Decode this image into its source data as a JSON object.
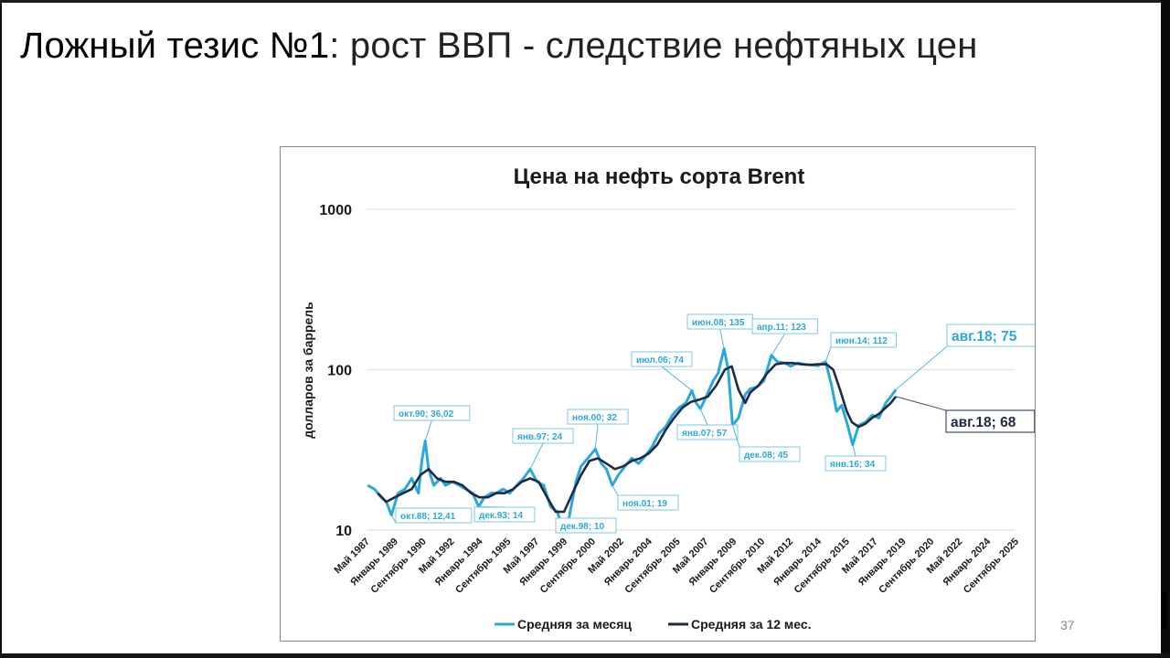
{
  "slide": {
    "title_strong": "Ложный тезис №1",
    "title_rest": ": рост ВВП - следствие нефтяных цен",
    "page_number": "37"
  },
  "colors": {
    "monthly": "#2aa8dc",
    "annual": "#1f2a44",
    "label_monthly": "#2aa8dc",
    "label_annual": "#1f2a44",
    "grid": "#e6e6e6"
  },
  "chart_data": {
    "type": "line",
    "title": "Цена на нефть сорта Brent",
    "xlabel": "",
    "ylabel": "долларов за баррель",
    "yscale": "log",
    "ylim": [
      10,
      1000
    ],
    "yticks": [
      "1000",
      "100",
      "10"
    ],
    "grid": true,
    "legend_position": "bottom",
    "x_tick_labels": [
      "Май 1987",
      "Январь 1989",
      "Сентябрь 1990",
      "Май 1992",
      "Январь 1994",
      "Сентябрь 1995",
      "Май 1997",
      "Январь 1999",
      "Сентябрь 2000",
      "Май 2002",
      "Январь 2004",
      "Сентябрь 2005",
      "Май 2007",
      "Январь 2009",
      "Сентябрь 2010",
      "Май 2012",
      "Январь 2014",
      "Сентябрь 2015",
      "Май 2017",
      "Январь 2019",
      "Сентябрь 2020",
      "Май 2022",
      "Январь 2024",
      "Сентябрь 2025"
    ],
    "series": [
      {
        "name": "Средняя за месяц",
        "x": [
          1987.4,
          1987.8,
          1988.2,
          1988.5,
          1988.8,
          1989.2,
          1989.6,
          1990.0,
          1990.4,
          1990.6,
          1990.8,
          1991.0,
          1991.3,
          1991.7,
          1992.0,
          1992.4,
          1992.8,
          1993.2,
          1993.6,
          1993.95,
          1994.3,
          1994.7,
          1995.0,
          1995.4,
          1995.8,
          1996.2,
          1996.6,
          1997.0,
          1997.4,
          1997.8,
          1998.2,
          1998.6,
          1998.95,
          1999.3,
          1999.7,
          2000.0,
          2000.4,
          2000.85,
          2001.2,
          2001.5,
          2001.85,
          2002.2,
          2002.6,
          2003.0,
          2003.4,
          2003.8,
          2004.2,
          2004.6,
          2005.0,
          2005.4,
          2005.8,
          2006.2,
          2006.55,
          2006.8,
          2007.05,
          2007.4,
          2007.8,
          2008.1,
          2008.45,
          2008.7,
          2008.95,
          2009.3,
          2009.7,
          2010.0,
          2010.4,
          2010.8,
          2011.25,
          2011.6,
          2012.0,
          2012.4,
          2012.8,
          2013.2,
          2013.6,
          2014.0,
          2014.45,
          2014.8,
          2015.1,
          2015.4,
          2015.7,
          2016.05,
          2016.4,
          2016.8,
          2017.2,
          2017.6,
          2018.0,
          2018.3,
          2018.6
        ],
        "values": [
          19,
          18,
          16,
          15,
          12.4,
          17,
          18,
          21,
          17,
          27,
          36,
          24,
          19,
          21,
          19,
          20,
          19,
          18,
          17,
          14,
          16,
          17,
          17,
          18,
          17,
          19,
          21,
          24,
          20,
          19,
          14,
          13,
          10,
          12,
          20,
          25,
          28,
          32,
          26,
          24,
          19,
          22,
          25,
          28,
          26,
          29,
          33,
          40,
          44,
          52,
          58,
          62,
          74,
          62,
          57,
          68,
          85,
          95,
          135,
          100,
          45,
          50,
          70,
          76,
          78,
          85,
          123,
          112,
          110,
          105,
          110,
          108,
          107,
          106,
          112,
          80,
          55,
          60,
          47,
          34,
          45,
          47,
          52,
          50,
          62,
          68,
          75
        ]
      },
      {
        "name": "Средняя за 12 мес.",
        "x": [
          1988.0,
          1988.5,
          1989.0,
          1989.5,
          1990.0,
          1990.5,
          1991.0,
          1991.5,
          1992.0,
          1992.5,
          1993.0,
          1993.5,
          1994.0,
          1994.5,
          1995.0,
          1995.5,
          1996.0,
          1996.5,
          1997.0,
          1997.5,
          1998.0,
          1998.5,
          1999.0,
          1999.5,
          2000.0,
          2000.5,
          2001.0,
          2001.5,
          2002.0,
          2002.5,
          2003.0,
          2003.5,
          2004.0,
          2004.5,
          2005.0,
          2005.5,
          2006.0,
          2006.5,
          2007.0,
          2007.5,
          2008.0,
          2008.5,
          2008.9,
          2009.3,
          2009.7,
          2010.0,
          2010.5,
          2011.0,
          2011.5,
          2012.0,
          2012.5,
          2013.0,
          2013.5,
          2014.0,
          2014.5,
          2014.9,
          2015.3,
          2015.7,
          2016.0,
          2016.4,
          2016.8,
          2017.2,
          2017.6,
          2018.0,
          2018.3,
          2018.6
        ],
        "values": [
          17,
          15,
          16,
          17,
          18,
          22,
          24,
          21,
          20,
          20,
          19,
          17,
          16,
          16,
          17,
          17,
          18,
          20,
          21,
          20,
          16,
          13,
          13,
          17,
          22,
          27,
          28,
          26,
          24,
          25,
          27,
          28,
          30,
          34,
          42,
          50,
          58,
          63,
          65,
          68,
          80,
          100,
          105,
          75,
          62,
          72,
          80,
          95,
          108,
          110,
          110,
          108,
          107,
          108,
          108,
          100,
          75,
          55,
          47,
          44,
          46,
          50,
          53,
          58,
          62,
          68
        ]
      }
    ],
    "annotations": [
      {
        "label": "окт.88; 12,41",
        "series": "Средняя за месяц",
        "x": 1988.8,
        "y": 12.41
      },
      {
        "label": "окт.90; 36,02",
        "series": "Средняя за месяц",
        "x": 1990.8,
        "y": 36.02
      },
      {
        "label": "дек.93; 14",
        "series": "Средняя за месяц",
        "x": 1993.95,
        "y": 14
      },
      {
        "label": "янв.97; 24",
        "series": "Средняя за месяц",
        "x": 1997.0,
        "y": 24
      },
      {
        "label": "дек.98; 10",
        "series": "Средняя за месяц",
        "x": 1998.95,
        "y": 10
      },
      {
        "label": "ноя.00; 32",
        "series": "Средняя за месяц",
        "x": 2000.85,
        "y": 32
      },
      {
        "label": "ноя.01; 19",
        "series": "Средняя за месяц",
        "x": 2001.85,
        "y": 19
      },
      {
        "label": "июл.06; 74",
        "series": "Средняя за месяц",
        "x": 2006.55,
        "y": 74
      },
      {
        "label": "янв.07; 57",
        "series": "Средняя за месяц",
        "x": 2007.05,
        "y": 57
      },
      {
        "label": "июн.08; 135",
        "series": "Средняя за месяц",
        "x": 2008.45,
        "y": 135
      },
      {
        "label": "дек.08; 45",
        "series": "Средняя за месяц",
        "x": 2008.95,
        "y": 45
      },
      {
        "label": "апр.11; 123",
        "series": "Средняя за месяц",
        "x": 2011.25,
        "y": 123
      },
      {
        "label": "июн.14; 112",
        "series": "Средняя за месяц",
        "x": 2014.45,
        "y": 112
      },
      {
        "label": "янв.16; 34",
        "series": "Средняя за месяц",
        "x": 2016.05,
        "y": 34
      },
      {
        "label": "авг.18; 75",
        "series": "Средняя за месяц",
        "x": 2018.6,
        "y": 75
      },
      {
        "label": "авг.18; 68",
        "series": "Средняя за 12 мес.",
        "x": 2018.6,
        "y": 68
      }
    ],
    "legend": [
      "Средняя за месяц",
      "Средняя за 12 мес."
    ]
  }
}
